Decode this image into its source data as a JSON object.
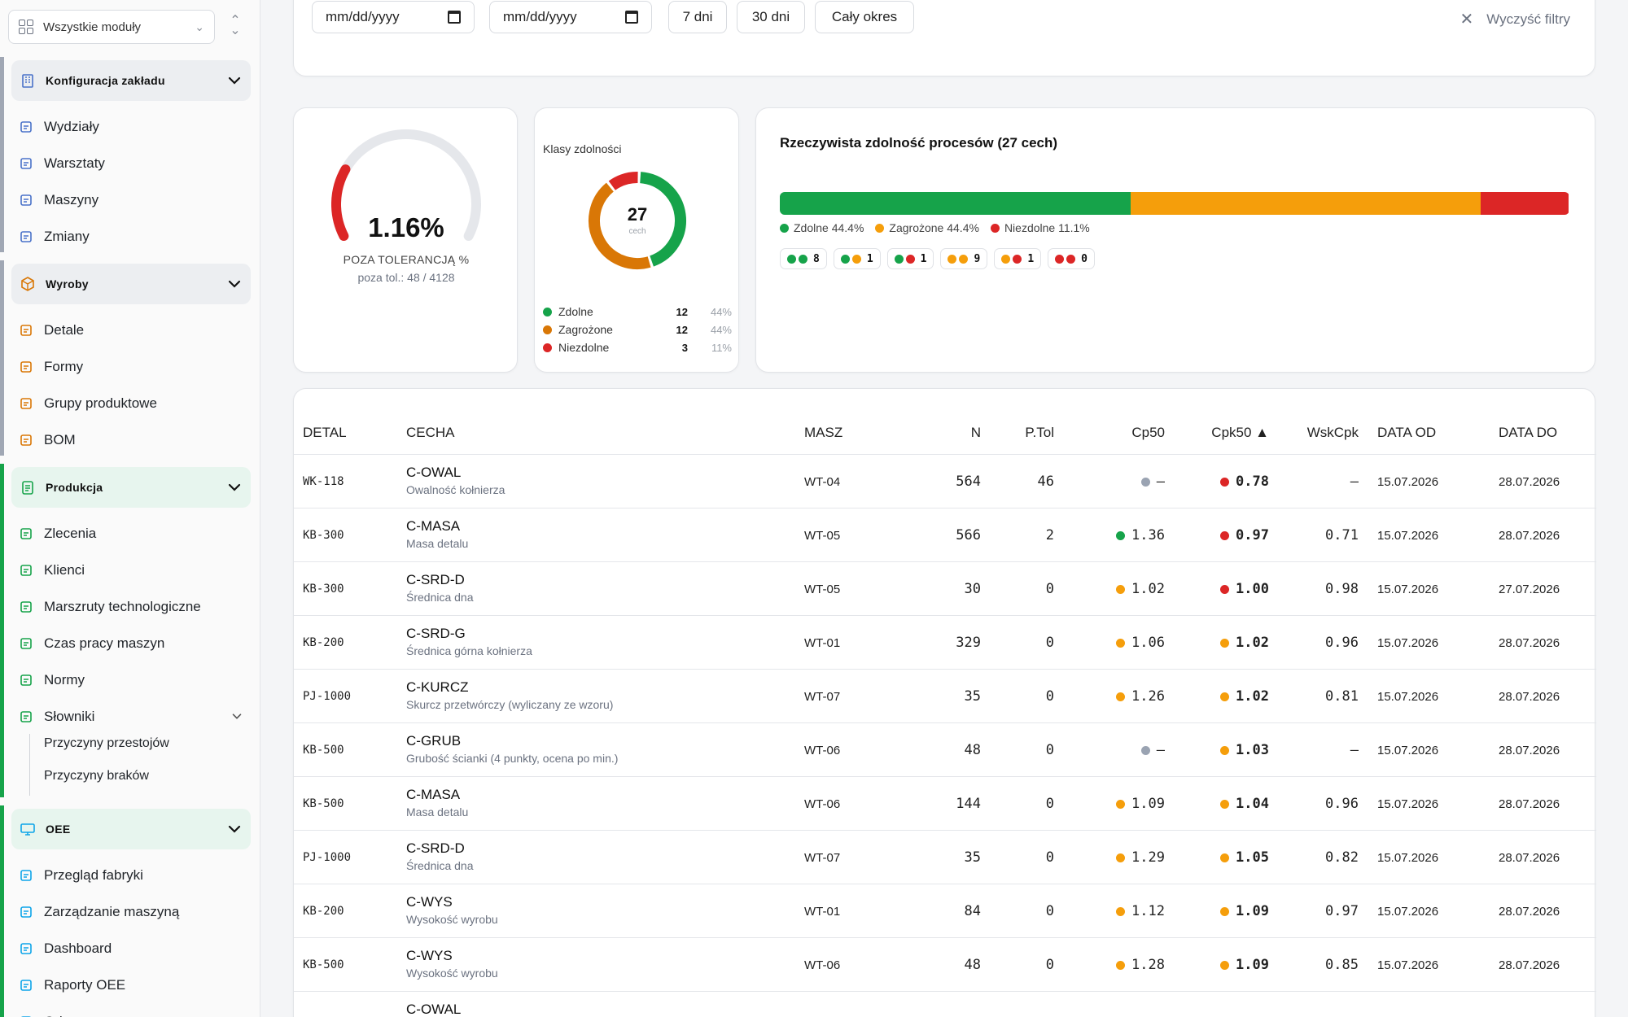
{
  "colors": {
    "green": "#16a34a",
    "orange": "#f59e0b",
    "red": "#dc2626",
    "gray": "#9aa3b2",
    "accent_bg": "#e7f5ee"
  },
  "sidebar": {
    "module_select": "Wszystkie moduły",
    "groups": [
      {
        "title": "Konfiguracja zakładu",
        "bar": "#a0a7b4",
        "head_bg": "#eceef1",
        "icon": "building-icon",
        "items": [
          "Wydziały",
          "Warsztaty",
          "Maszyny",
          "Zmiany"
        ]
      },
      {
        "title": "Wyroby",
        "bar": "#a0a7b4",
        "head_bg": "#eceef1",
        "icon": "box-icon",
        "items": [
          "Detale",
          "Formy",
          "Grupy produktowe",
          "BOM"
        ]
      },
      {
        "title": "Produkcja",
        "bar": "#16a34a",
        "head_bg": "#e7f5ee",
        "icon": "clipboard-icon",
        "items": [
          "Zlecenia",
          "Klienci",
          "Marszruty technologiczne",
          "Czas pracy maszyn",
          "Normy",
          "Słowniki"
        ],
        "subitems": [
          "Przyczyny przestojów",
          "Przyczyny braków"
        ]
      },
      {
        "title": "OEE",
        "bar": "#16a34a",
        "head_bg": "#e7f5ee",
        "icon": "monitor-icon",
        "items": [
          "Przegląd fabryki",
          "Zarządzanie maszyną",
          "Dashboard",
          "Raporty OEE",
          "Odprawa"
        ]
      }
    ]
  },
  "filters": {
    "date_from_placeholder": "mm/dd/yyyy",
    "date_to_placeholder": "mm/dd/yyyy",
    "chips": [
      "7 dni",
      "30 dni",
      "Cały okres"
    ],
    "clear": "Wyczyść filtry"
  },
  "gauge": {
    "value_text": "1.16%",
    "value": 1.16,
    "label": "POZA TOLERANCJĄ %",
    "sub": "poza tol.: 48 / 4128"
  },
  "donut": {
    "title": "Klasy zdolności",
    "total": "27",
    "unit": "cech",
    "legend": [
      {
        "label": "Zdolne",
        "count": "12",
        "pct": "44%",
        "color": "#16a34a"
      },
      {
        "label": "Zagrożone",
        "count": "12",
        "pct": "44%",
        "color": "#d97706"
      },
      {
        "label": "Niezdolne",
        "count": "3",
        "pct": "11%",
        "color": "#dc2626"
      }
    ]
  },
  "process": {
    "title": "Rzeczywista zdolność procesów (27 cech)",
    "segments": [
      {
        "label": "Zdolne 44.4%",
        "value": 44.4,
        "color": "#16a34a"
      },
      {
        "label": "Zagrożone 44.4%",
        "value": 44.4,
        "color": "#f59e0b"
      },
      {
        "label": "Niezdolne 11.1%",
        "value": 11.1,
        "color": "#dc2626"
      }
    ],
    "pills": [
      {
        "dots": [
          "#16a34a",
          "#16a34a"
        ],
        "n": "8"
      },
      {
        "dots": [
          "#16a34a",
          "#f59e0b"
        ],
        "n": "1"
      },
      {
        "dots": [
          "#16a34a",
          "#dc2626"
        ],
        "n": "1"
      },
      {
        "dots": [
          "#f59e0b",
          "#f59e0b"
        ],
        "n": "9"
      },
      {
        "dots": [
          "#f59e0b",
          "#dc2626"
        ],
        "n": "1"
      },
      {
        "dots": [
          "#dc2626",
          "#dc2626"
        ],
        "n": "0"
      }
    ]
  },
  "table": {
    "headers": [
      "DETAL",
      "CECHA",
      "MASZ",
      "N",
      "P.Tol",
      "Cp50",
      "Cpk50 ▲",
      "WskCpk",
      "DATA OD",
      "DATA DO"
    ],
    "rows": [
      {
        "detal": "WK-118",
        "cecha": "C-OWAL",
        "opis": "Owalność kołnierza",
        "masz": "WT-04",
        "n": "564",
        "ptol": "46",
        "cp": "–",
        "cp_c": "#9aa3b2",
        "cpk": "0.78",
        "cpk_c": "#dc2626",
        "wsk": "–",
        "od": "15.07.2026",
        "do": "28.07.2026"
      },
      {
        "detal": "KB-300",
        "cecha": "C-MASA",
        "opis": "Masa detalu",
        "masz": "WT-05",
        "n": "566",
        "ptol": "2",
        "cp": "1.36",
        "cp_c": "#16a34a",
        "cpk": "0.97",
        "cpk_c": "#dc2626",
        "wsk": "0.71",
        "od": "15.07.2026",
        "do": "28.07.2026"
      },
      {
        "detal": "KB-300",
        "cecha": "C-SRD-D",
        "opis": "Średnica dna",
        "masz": "WT-05",
        "n": "30",
        "ptol": "0",
        "cp": "1.02",
        "cp_c": "#f59e0b",
        "cpk": "1.00",
        "cpk_c": "#dc2626",
        "wsk": "0.98",
        "od": "15.07.2026",
        "do": "27.07.2026"
      },
      {
        "detal": "KB-200",
        "cecha": "C-SRD-G",
        "opis": "Średnica górna kołnierza",
        "masz": "WT-01",
        "n": "329",
        "ptol": "0",
        "cp": "1.06",
        "cp_c": "#f59e0b",
        "cpk": "1.02",
        "cpk_c": "#f59e0b",
        "wsk": "0.96",
        "od": "15.07.2026",
        "do": "28.07.2026"
      },
      {
        "detal": "PJ-1000",
        "cecha": "C-KURCZ",
        "opis": "Skurcz przetwórczy (wyliczany ze wzoru)",
        "masz": "WT-07",
        "n": "35",
        "ptol": "0",
        "cp": "1.26",
        "cp_c": "#f59e0b",
        "cpk": "1.02",
        "cpk_c": "#f59e0b",
        "wsk": "0.81",
        "od": "15.07.2026",
        "do": "28.07.2026"
      },
      {
        "detal": "KB-500",
        "cecha": "C-GRUB",
        "opis": "Grubość ścianki (4 punkty, ocena po min.)",
        "masz": "WT-06",
        "n": "48",
        "ptol": "0",
        "cp": "–",
        "cp_c": "#9aa3b2",
        "cpk": "1.03",
        "cpk_c": "#f59e0b",
        "wsk": "–",
        "od": "15.07.2026",
        "do": "28.07.2026"
      },
      {
        "detal": "KB-500",
        "cecha": "C-MASA",
        "opis": "Masa detalu",
        "masz": "WT-06",
        "n": "144",
        "ptol": "0",
        "cp": "1.09",
        "cp_c": "#f59e0b",
        "cpk": "1.04",
        "cpk_c": "#f59e0b",
        "wsk": "0.96",
        "od": "15.07.2026",
        "do": "28.07.2026"
      },
      {
        "detal": "PJ-1000",
        "cecha": "C-SRD-D",
        "opis": "Średnica dna",
        "masz": "WT-07",
        "n": "35",
        "ptol": "0",
        "cp": "1.29",
        "cp_c": "#f59e0b",
        "cpk": "1.05",
        "cpk_c": "#f59e0b",
        "wsk": "0.82",
        "od": "15.07.2026",
        "do": "28.07.2026"
      },
      {
        "detal": "KB-200",
        "cecha": "C-WYS",
        "opis": "Wysokość wyrobu",
        "masz": "WT-01",
        "n": "84",
        "ptol": "0",
        "cp": "1.12",
        "cp_c": "#f59e0b",
        "cpk": "1.09",
        "cpk_c": "#f59e0b",
        "wsk": "0.97",
        "od": "15.07.2026",
        "do": "28.07.2026"
      },
      {
        "detal": "KB-500",
        "cecha": "C-WYS",
        "opis": "Wysokość wyrobu",
        "masz": "WT-06",
        "n": "48",
        "ptol": "0",
        "cp": "1.28",
        "cp_c": "#f59e0b",
        "cpk": "1.09",
        "cpk_c": "#f59e0b",
        "wsk": "0.85",
        "od": "15.07.2026",
        "do": "28.07.2026"
      },
      {
        "detal": "",
        "cecha": "C-OWAL",
        "opis": "",
        "masz": "",
        "n": "",
        "ptol": "",
        "cp": "",
        "cp_c": "#9aa3b2",
        "cpk": "",
        "cpk_c": "#f59e0b",
        "wsk": "",
        "od": "",
        "do": ""
      }
    ]
  }
}
